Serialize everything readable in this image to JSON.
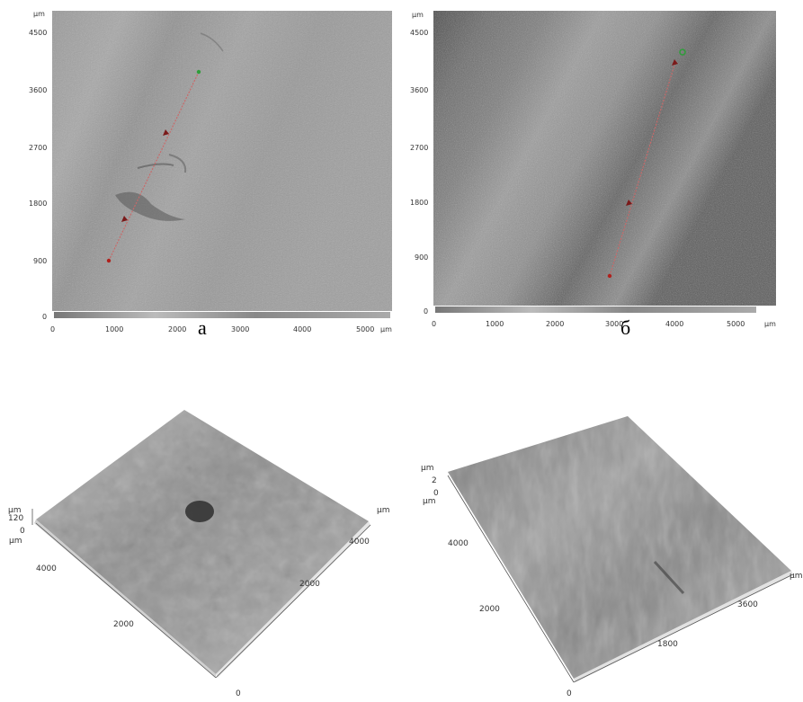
{
  "panel_a": {
    "unit_y": "µm",
    "y_ticks": [
      "4500",
      "3600",
      "2700",
      "1800",
      "900",
      "0"
    ],
    "x_ticks": [
      "0",
      "1000",
      "2000",
      "3000",
      "4000",
      "5000"
    ],
    "unit_x": "µm",
    "caption": "а"
  },
  "panel_b": {
    "unit_y": "µm",
    "y_ticks": [
      "4500",
      "3600",
      "2700",
      "1800",
      "900",
      "0"
    ],
    "x_ticks": [
      "0",
      "1000",
      "2000",
      "3000",
      "4000",
      "5000"
    ],
    "unit_x": "µm",
    "caption": "б"
  },
  "surface_a": {
    "z_unit_top": "µm",
    "z_max": "120",
    "z_min": "0",
    "y_unit": "µm",
    "y_ticks": [
      "4000",
      "2000"
    ],
    "x_unit": "µm",
    "x_ticks": [
      "4000",
      "2000"
    ],
    "origin": "0"
  },
  "surface_b": {
    "z_unit_top": "µm",
    "z_max": "2",
    "z_min": "0",
    "y_unit": "µm",
    "y_ticks": [
      "4000",
      "2000"
    ],
    "x_unit": "µm",
    "x_ticks": [
      "3600",
      "1800"
    ],
    "origin": "0"
  },
  "colors": {
    "marker_red": "#b0201c",
    "marker_green": "#2f9e3a",
    "line": "#c86a6a"
  }
}
